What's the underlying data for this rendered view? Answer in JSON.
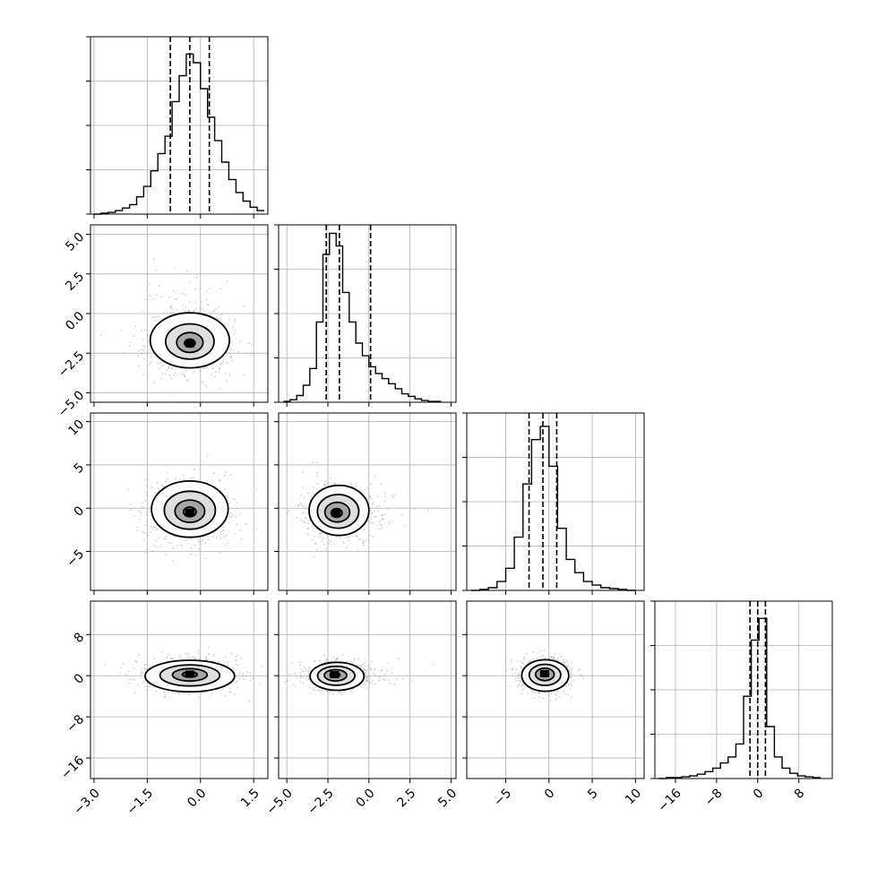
{
  "chart_data": {
    "type": "corner",
    "dimensions": 4,
    "grid": true,
    "quantile_lines": "dashed",
    "diagonal": [
      {
        "type": "histogram",
        "x_range": [
          -3.1,
          1.9
        ],
        "y_max": 205,
        "bins": [
          [
            -2.9,
            0
          ],
          [
            -2.7,
            1
          ],
          [
            -2.5,
            2
          ],
          [
            -2.3,
            4
          ],
          [
            -2.1,
            7
          ],
          [
            -1.9,
            11
          ],
          [
            -1.7,
            20
          ],
          [
            -1.5,
            32
          ],
          [
            -1.3,
            50
          ],
          [
            -1.1,
            70
          ],
          [
            -0.9,
            90
          ],
          [
            -0.7,
            130
          ],
          [
            -0.5,
            160
          ],
          [
            -0.3,
            185
          ],
          [
            -0.1,
            175
          ],
          [
            0.1,
            145
          ],
          [
            0.3,
            112
          ],
          [
            0.5,
            85
          ],
          [
            0.7,
            60
          ],
          [
            0.9,
            40
          ],
          [
            1.1,
            25
          ],
          [
            1.3,
            15
          ],
          [
            1.5,
            8
          ],
          [
            1.7,
            4
          ]
        ],
        "quantiles": [
          -0.85,
          -0.3,
          0.25
        ]
      },
      {
        "type": "histogram",
        "x_range": [
          -5.5,
          5.3
        ],
        "y_max": 210,
        "bins": [
          [
            -5.0,
            1
          ],
          [
            -4.6,
            3
          ],
          [
            -4.2,
            8
          ],
          [
            -3.8,
            20
          ],
          [
            -3.4,
            40
          ],
          [
            -3.0,
            95
          ],
          [
            -2.6,
            175
          ],
          [
            -2.2,
            200
          ],
          [
            -1.8,
            185
          ],
          [
            -1.4,
            130
          ],
          [
            -1.0,
            95
          ],
          [
            -0.6,
            70
          ],
          [
            -0.2,
            55
          ],
          [
            0.2,
            42
          ],
          [
            0.6,
            34
          ],
          [
            1.0,
            28
          ],
          [
            1.4,
            22
          ],
          [
            1.8,
            16
          ],
          [
            2.2,
            10
          ],
          [
            2.6,
            7
          ],
          [
            3.0,
            4
          ],
          [
            3.4,
            2
          ],
          [
            3.8,
            1
          ],
          [
            4.2,
            1
          ]
        ],
        "quantiles": [
          -2.6,
          -1.8,
          0.1
        ]
      },
      {
        "type": "histogram",
        "x_range": [
          -9.5,
          11.0
        ],
        "y_max": 200,
        "bins": [
          [
            -8.5,
            0
          ],
          [
            -7.5,
            1
          ],
          [
            -6.5,
            3
          ],
          [
            -5.5,
            10
          ],
          [
            -4.5,
            25
          ],
          [
            -3.5,
            60
          ],
          [
            -2.5,
            120
          ],
          [
            -1.5,
            170
          ],
          [
            -0.5,
            185
          ],
          [
            0.5,
            140
          ],
          [
            1.5,
            70
          ],
          [
            2.5,
            35
          ],
          [
            3.5,
            20
          ],
          [
            4.5,
            10
          ],
          [
            5.5,
            6
          ],
          [
            6.5,
            3
          ],
          [
            7.5,
            2
          ],
          [
            8.5,
            1
          ],
          [
            9.5,
            0
          ]
        ],
        "quantiles": [
          -2.3,
          -0.7,
          0.9
        ]
      },
      {
        "type": "histogram",
        "x_range": [
          -20.0,
          14.5
        ],
        "y_max": 205,
        "bins": [
          [
            -18.5,
            0
          ],
          [
            -17.0,
            1
          ],
          [
            -15.5,
            1
          ],
          [
            -14.0,
            2
          ],
          [
            -12.5,
            3
          ],
          [
            -11.0,
            5
          ],
          [
            -9.5,
            8
          ],
          [
            -8.0,
            12
          ],
          [
            -6.5,
            18
          ],
          [
            -5.0,
            25
          ],
          [
            -3.5,
            40
          ],
          [
            -2.0,
            95
          ],
          [
            -0.5,
            160
          ],
          [
            1.0,
            185
          ],
          [
            2.5,
            60
          ],
          [
            4.0,
            25
          ],
          [
            5.5,
            12
          ],
          [
            7.0,
            6
          ],
          [
            8.5,
            3
          ],
          [
            10.0,
            2
          ],
          [
            11.5,
            1
          ]
        ],
        "quantiles": [
          -1.5,
          0.0,
          1.5
        ]
      }
    ],
    "ticks": [
      [
        -3.0,
        -1.5,
        0.0,
        1.5
      ],
      [
        -5.0,
        -2.5,
        0.0,
        2.5,
        5.0
      ],
      [
        -5,
        0,
        5,
        10
      ],
      [
        -16,
        -8,
        0,
        8
      ]
    ],
    "tick_labels": [
      [
        "−3.0",
        "−1.5",
        "0.0",
        "1.5"
      ],
      [
        "−5.0",
        "−2.5",
        "0.0",
        "2.5",
        "5.0"
      ],
      [
        "−5",
        "0",
        "5",
        "10"
      ],
      [
        "−16",
        "−8",
        "0",
        "8"
      ]
    ],
    "pairs": [
      {
        "i": 1,
        "j": 0,
        "center": [
          -0.3,
          -1.9
        ],
        "sd": [
          0.62,
          0.95
        ],
        "skew": [
          0,
          1.8
        ],
        "contour_scales": [
          0.9,
          0.55,
          0.3,
          0.12
        ]
      },
      {
        "i": 2,
        "j": 0,
        "center": [
          -0.3,
          -0.5
        ],
        "sd": [
          0.6,
          1.8
        ],
        "skew": [
          0,
          0.5
        ],
        "contour_scales": [
          0.9,
          0.6,
          0.35,
          0.15
        ]
      },
      {
        "i": 2,
        "j": 1,
        "center": [
          -2.0,
          -0.6
        ],
        "sd": [
          1.0,
          1.6
        ],
        "skew": [
          1.6,
          0.4
        ],
        "contour_scales": [
          0.9,
          0.6,
          0.35,
          0.15
        ]
      },
      {
        "i": 3,
        "j": 0,
        "center": [
          -0.3,
          0.3
        ],
        "sd": [
          0.7,
          1.7
        ],
        "skew": [
          0,
          -0.3
        ],
        "contour_scales": [
          0.9,
          0.6,
          0.35,
          0.15
        ]
      },
      {
        "i": 3,
        "j": 1,
        "center": [
          -2.1,
          0.2
        ],
        "sd": [
          0.9,
          1.5
        ],
        "skew": [
          1.6,
          -0.8
        ],
        "contour_scales": [
          0.9,
          0.6,
          0.35,
          0.15
        ]
      },
      {
        "i": 3,
        "j": 2,
        "center": [
          -0.5,
          0.4
        ],
        "sd": [
          1.5,
          1.7
        ],
        "skew": [
          0.4,
          -0.3
        ],
        "contour_scales": [
          0.9,
          0.6,
          0.35,
          0.15
        ]
      }
    ],
    "colors": {
      "points": "#9a9a9a",
      "grid": "#b0b0b0",
      "lines": "#000000"
    }
  }
}
